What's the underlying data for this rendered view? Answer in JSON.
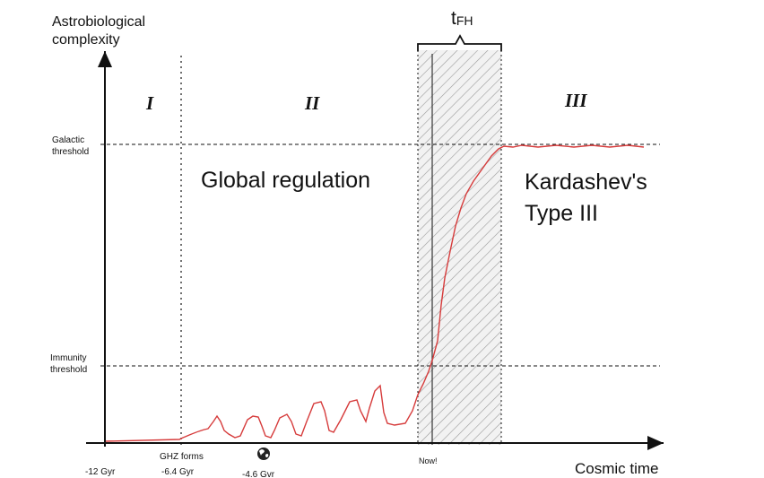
{
  "yaxis_label_line1": "Astrobiological",
  "yaxis_label_line2": "complexity",
  "xaxis_label": "Cosmic time",
  "thresholds": {
    "galactic_line1": "Galactic",
    "galactic_line2": "threshold",
    "immunity_line1": "Immunity",
    "immunity_line2": "threshold"
  },
  "regions": {
    "r1": "I",
    "r2": "II",
    "r3": "III"
  },
  "window_label_main": "t",
  "window_label_sub": "FH",
  "annotations": {
    "global_regulation": "Global regulation",
    "kardashev_line1": "Kardashev's",
    "kardashev_line2": "Type III"
  },
  "ticks": {
    "t1": "-12 Gyr",
    "t2_line1": "GHZ forms",
    "t2_line2": "-6.4 Gyr",
    "t3": "-4.6 Gvr",
    "now": "Now!"
  },
  "colors": {
    "curve": "#d63b3b",
    "axes": "#111111",
    "hatch": "#9a9a9a",
    "band": "#f0f0f0"
  },
  "icons": {
    "earth": "earth-globe-icon"
  }
}
